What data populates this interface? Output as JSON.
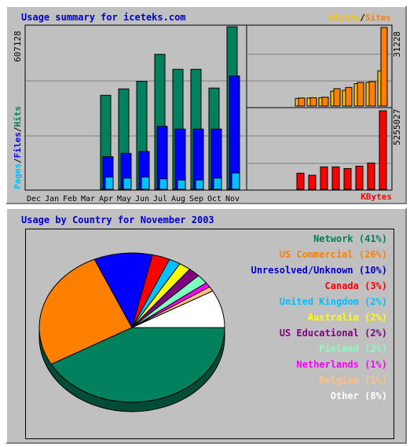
{
  "top_panel": {
    "title": "Usage summary for iceteks.com",
    "legend_visits": "Visits",
    "legend_sep": "/",
    "legend_sites": "Sites",
    "left_axis_pages": "Pages",
    "left_axis_files": "Files",
    "left_axis_hits": "Hits",
    "kbytes_label": "KBytes",
    "max_hits_label": "607128",
    "max_visits_label": "31228",
    "max_kbytes_label": "5255027"
  },
  "bottom_panel": {
    "title": "Usage by Country for November 2003"
  },
  "colors": {
    "hits": "#00805c",
    "files": "#0000ff",
    "pages": "#00c0ff",
    "visits": "#ffc000",
    "sites": "#ff8000",
    "kbytes": "#ff0000"
  },
  "chart_data": [
    {
      "type": "bar",
      "title": "Usage summary for iceteks.com",
      "categories": [
        "Dec",
        "Jan",
        "Feb",
        "Mar",
        "Apr",
        "May",
        "Jun",
        "Jul",
        "Aug",
        "Sep",
        "Oct",
        "Nov"
      ],
      "ylim": [
        0,
        607128
      ],
      "series": [
        {
          "name": "Hits",
          "values": [
            0,
            0,
            0,
            0,
            351000,
            375000,
            403000,
            504000,
            448000,
            448000,
            378000,
            607128
          ]
        },
        {
          "name": "Files",
          "values": [
            0,
            0,
            0,
            0,
            122000,
            134000,
            141000,
            235000,
            225000,
            225000,
            225000,
            423000
          ]
        },
        {
          "name": "Pages",
          "values": [
            0,
            0,
            0,
            0,
            46000,
            42000,
            46000,
            39000,
            35000,
            35000,
            42000,
            61000
          ]
        }
      ]
    },
    {
      "type": "bar",
      "categories": [
        "Dec",
        "Jan",
        "Feb",
        "Mar",
        "Apr",
        "May",
        "Jun",
        "Jul",
        "Aug",
        "Sep",
        "Oct",
        "Nov"
      ],
      "ylim": [
        0,
        31228
      ],
      "series": [
        {
          "name": "Visits",
          "values": [
            0,
            0,
            0,
            0,
            3000,
            3200,
            3300,
            5900,
            6200,
            8900,
            9400,
            14000
          ]
        },
        {
          "name": "Sites",
          "values": [
            0,
            0,
            0,
            0,
            3200,
            3300,
            3500,
            6900,
            7400,
            9400,
            9700,
            31228
          ]
        }
      ]
    },
    {
      "type": "bar",
      "categories": [
        "Dec",
        "Jan",
        "Feb",
        "Mar",
        "Apr",
        "May",
        "Jun",
        "Jul",
        "Aug",
        "Sep",
        "Oct",
        "Nov"
      ],
      "ylim": [
        0,
        5255027
      ],
      "series": [
        {
          "name": "KBytes",
          "values": [
            0,
            0,
            0,
            0,
            1080000,
            940000,
            1500000,
            1500000,
            1390000,
            1550000,
            1760000,
            5255027
          ]
        }
      ]
    },
    {
      "type": "pie",
      "title": "Usage by Country for November 2003",
      "labels": [
        "Network",
        "US Commercial",
        "Unresolved/Unknown",
        "Canada",
        "United Kingdom",
        "Australia",
        "US Educational",
        "Finland",
        "Netherlands",
        "Belgium",
        "Other"
      ],
      "display_labels": [
        "Network (41%)",
        "US Commercial (26%)",
        "Unresolved/Unknown (10%)",
        "Canada (3%)",
        "United Kingdom (2%)",
        "Australia (2%)",
        "US Educational (2%)",
        "Finland (2%)",
        "Netherlands (1%)",
        "Belgium (1%)",
        "Other (8%)"
      ],
      "values": [
        41,
        26,
        10,
        3,
        2,
        2,
        2,
        2,
        1,
        1,
        8
      ],
      "colors": [
        "#00805c",
        "#ff8000",
        "#0000ff",
        "#ff0000",
        "#00c0ff",
        "#ffff00",
        "#800080",
        "#80ffc0",
        "#ff00ff",
        "#ffc080",
        "#ffffff"
      ]
    }
  ]
}
